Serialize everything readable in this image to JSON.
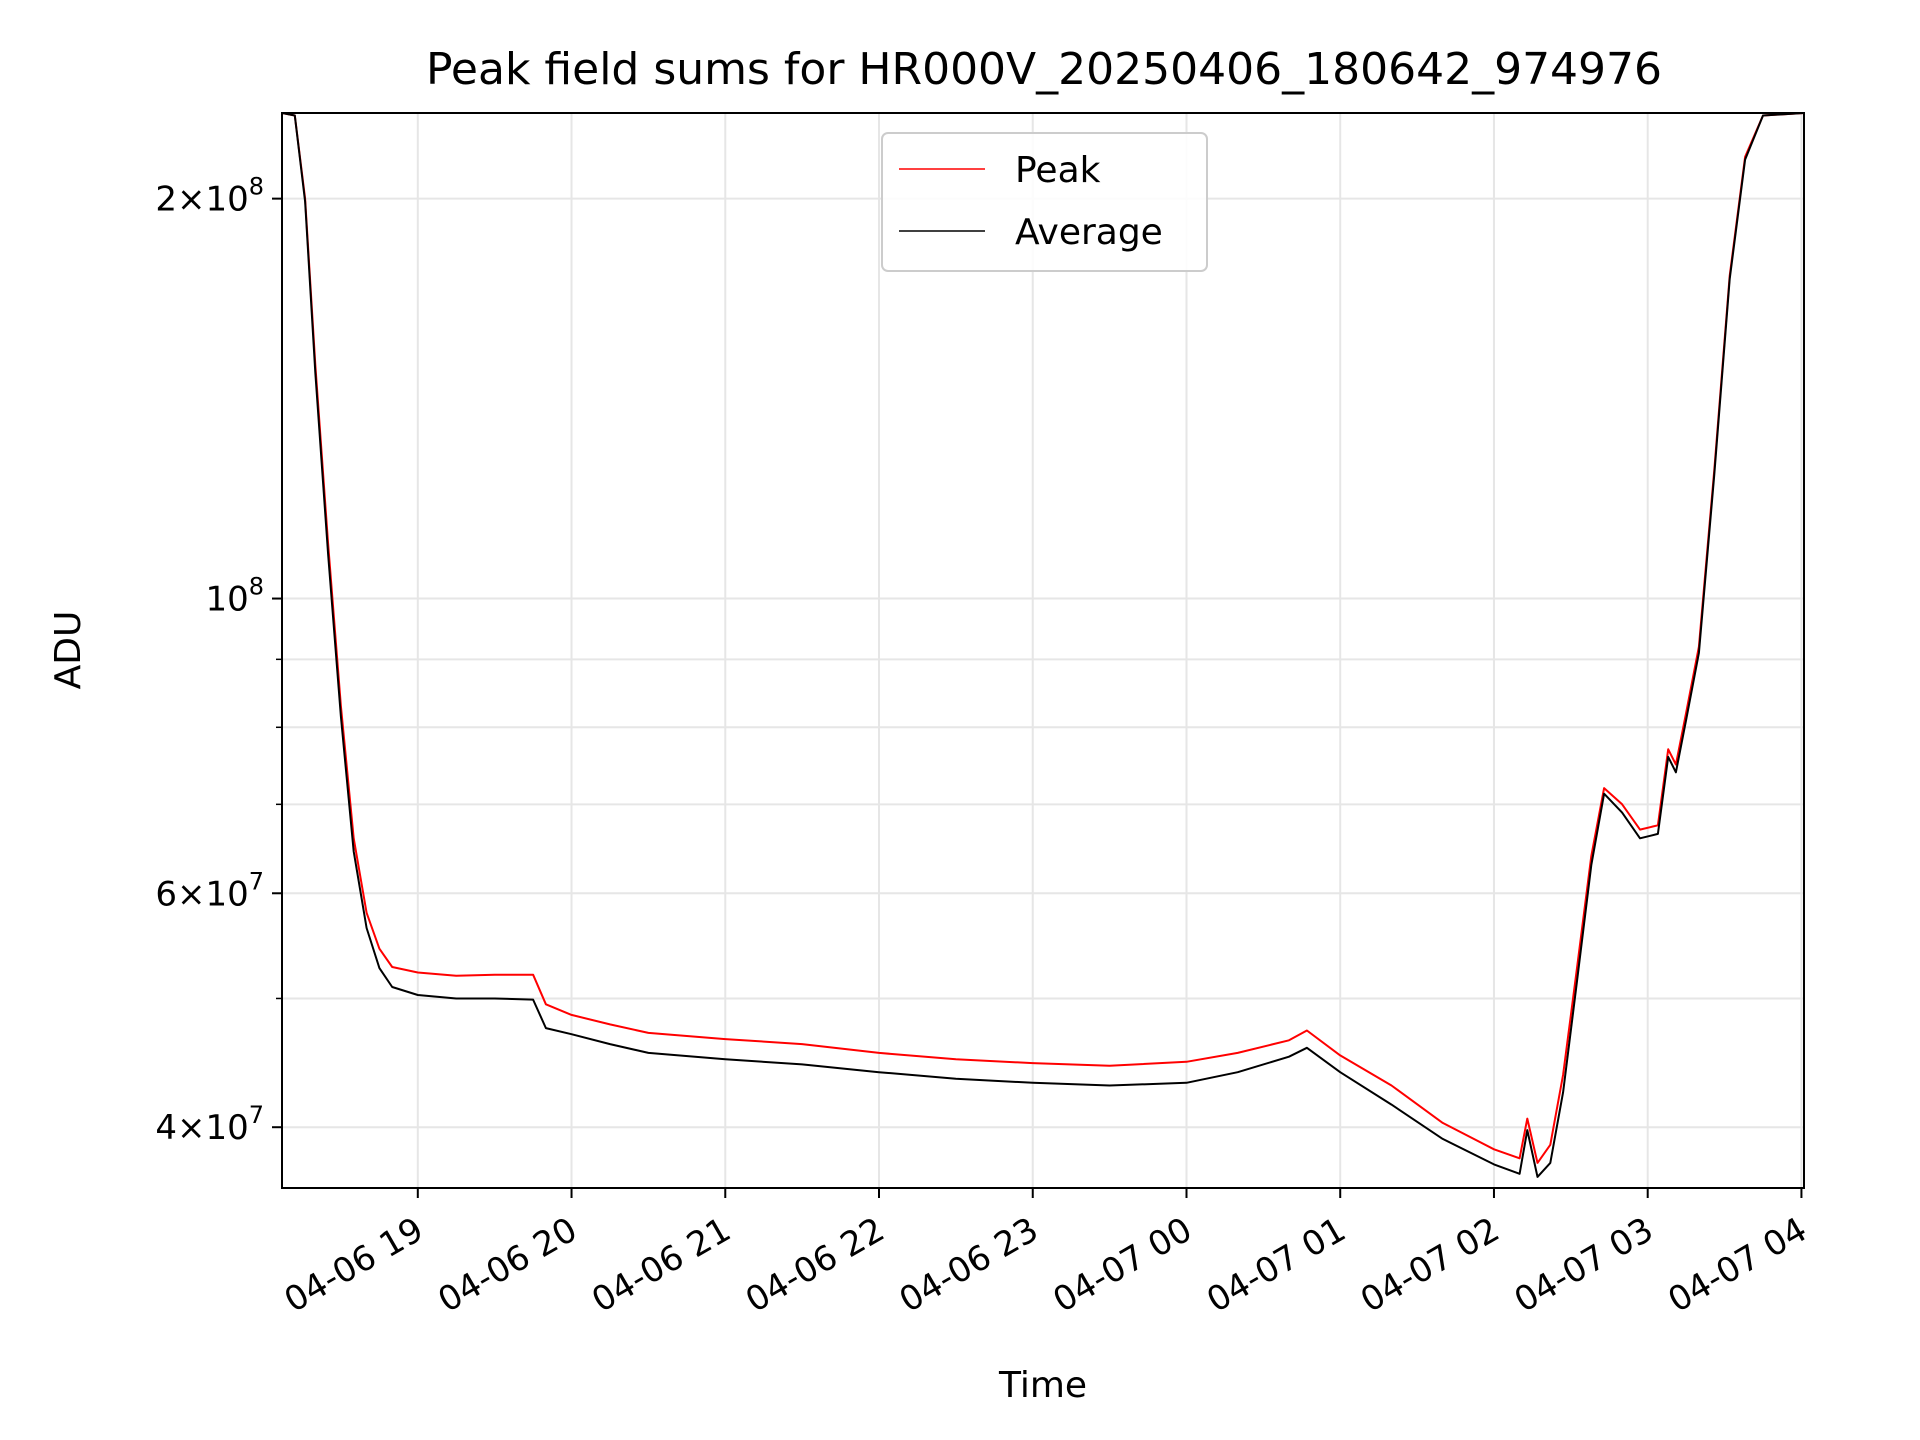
{
  "chart_data": {
    "type": "line",
    "title": "Peak field sums for HR000V_20250406_180642_974976",
    "xlabel": "Time",
    "ylabel": "ADU",
    "y_scale": "log",
    "ylim": [
      36000000,
      232000000
    ],
    "xlim": [
      "2025-04-06 18:07",
      "2025-04-07 04:01"
    ],
    "grid": true,
    "legend_position": "top-center",
    "x_ticks": [
      {
        "t": "2025-04-06 19:00",
        "label": "04-06 19"
      },
      {
        "t": "2025-04-06 20:00",
        "label": "04-06 20"
      },
      {
        "t": "2025-04-06 21:00",
        "label": "04-06 21"
      },
      {
        "t": "2025-04-06 22:00",
        "label": "04-06 22"
      },
      {
        "t": "2025-04-06 23:00",
        "label": "04-06 23"
      },
      {
        "t": "2025-04-07 00:00",
        "label": "04-07 00"
      },
      {
        "t": "2025-04-07 01:00",
        "label": "04-07 01"
      },
      {
        "t": "2025-04-07 02:00",
        "label": "04-07 02"
      },
      {
        "t": "2025-04-07 03:00",
        "label": "04-07 03"
      },
      {
        "t": "2025-04-07 04:00",
        "label": "04-07 04"
      }
    ],
    "y_ticks": [
      {
        "value": 40000000,
        "mant": "4",
        "exp": "7"
      },
      {
        "value": 60000000,
        "mant": "6",
        "exp": "7"
      },
      {
        "value": 100000000,
        "mant": "",
        "exp": "8"
      },
      {
        "value": 200000000,
        "mant": "2",
        "exp": "8"
      }
    ],
    "y_minor_ticks": [
      50000000,
      70000000,
      80000000,
      90000000
    ],
    "series": [
      {
        "name": "Peak",
        "color": "#ff0000",
        "points": [
          [
            "2025-04-06 18:07",
            232000000
          ],
          [
            "2025-04-06 18:12",
            231000000
          ],
          [
            "2025-04-06 18:16",
            200000000
          ],
          [
            "2025-04-06 18:20",
            150000000
          ],
          [
            "2025-04-06 18:25",
            110000000
          ],
          [
            "2025-04-06 18:30",
            83000000
          ],
          [
            "2025-04-06 18:35",
            66000000
          ],
          [
            "2025-04-06 18:40",
            58000000
          ],
          [
            "2025-04-06 18:45",
            54500000
          ],
          [
            "2025-04-06 18:50",
            52800000
          ],
          [
            "2025-04-06 19:00",
            52300000
          ],
          [
            "2025-04-06 19:15",
            52000000
          ],
          [
            "2025-04-06 19:30",
            52100000
          ],
          [
            "2025-04-06 19:45",
            52100000
          ],
          [
            "2025-04-06 19:50",
            49500000
          ],
          [
            "2025-04-06 20:00",
            48600000
          ],
          [
            "2025-04-06 20:15",
            47800000
          ],
          [
            "2025-04-06 20:30",
            47100000
          ],
          [
            "2025-04-06 21:00",
            46600000
          ],
          [
            "2025-04-06 21:30",
            46200000
          ],
          [
            "2025-04-06 22:00",
            45500000
          ],
          [
            "2025-04-06 22:30",
            45000000
          ],
          [
            "2025-04-06 23:00",
            44700000
          ],
          [
            "2025-04-06 23:30",
            44500000
          ],
          [
            "2025-04-07 00:00",
            44800000
          ],
          [
            "2025-04-07 00:20",
            45500000
          ],
          [
            "2025-04-07 00:40",
            46500000
          ],
          [
            "2025-04-07 00:47",
            47300000
          ],
          [
            "2025-04-07 01:00",
            45300000
          ],
          [
            "2025-04-07 01:20",
            43000000
          ],
          [
            "2025-04-07 01:40",
            40300000
          ],
          [
            "2025-04-07 02:00",
            38500000
          ],
          [
            "2025-04-07 02:10",
            37900000
          ],
          [
            "2025-04-07 02:13",
            40600000
          ],
          [
            "2025-04-07 02:17",
            37600000
          ],
          [
            "2025-04-07 02:22",
            38800000
          ],
          [
            "2025-04-07 02:27",
            43800000
          ],
          [
            "2025-04-07 02:32",
            52000000
          ],
          [
            "2025-04-07 02:38",
            64000000
          ],
          [
            "2025-04-07 02:43",
            72000000
          ],
          [
            "2025-04-07 02:50",
            70000000
          ],
          [
            "2025-04-07 02:57",
            67000000
          ],
          [
            "2025-04-07 03:04",
            67500000
          ],
          [
            "2025-04-07 03:08",
            77000000
          ],
          [
            "2025-04-07 03:11",
            75000000
          ],
          [
            "2025-04-07 03:15",
            82000000
          ],
          [
            "2025-04-07 03:20",
            92000000
          ],
          [
            "2025-04-07 03:26",
            125000000
          ],
          [
            "2025-04-07 03:32",
            175000000
          ],
          [
            "2025-04-07 03:38",
            215000000
          ],
          [
            "2025-04-07 03:45",
            231000000
          ],
          [
            "2025-04-07 04:01",
            232000000
          ]
        ]
      },
      {
        "name": "Average",
        "color": "#000000",
        "points": [
          [
            "2025-04-06 18:07",
            232000000
          ],
          [
            "2025-04-06 18:12",
            231000000
          ],
          [
            "2025-04-06 18:16",
            199000000
          ],
          [
            "2025-04-06 18:20",
            148000000
          ],
          [
            "2025-04-06 18:25",
            108000000
          ],
          [
            "2025-04-06 18:30",
            81500000
          ],
          [
            "2025-04-06 18:35",
            64500000
          ],
          [
            "2025-04-06 18:40",
            56500000
          ],
          [
            "2025-04-06 18:45",
            52700000
          ],
          [
            "2025-04-06 18:50",
            51000000
          ],
          [
            "2025-04-06 19:00",
            50300000
          ],
          [
            "2025-04-06 19:15",
            50000000
          ],
          [
            "2025-04-06 19:30",
            50000000
          ],
          [
            "2025-04-06 19:45",
            49900000
          ],
          [
            "2025-04-06 19:50",
            47500000
          ],
          [
            "2025-04-06 20:00",
            47000000
          ],
          [
            "2025-04-06 20:15",
            46200000
          ],
          [
            "2025-04-06 20:30",
            45500000
          ],
          [
            "2025-04-06 21:00",
            45000000
          ],
          [
            "2025-04-06 21:30",
            44600000
          ],
          [
            "2025-04-06 22:00",
            44000000
          ],
          [
            "2025-04-06 22:30",
            43500000
          ],
          [
            "2025-04-06 23:00",
            43200000
          ],
          [
            "2025-04-06 23:30",
            43000000
          ],
          [
            "2025-04-07 00:00",
            43200000
          ],
          [
            "2025-04-07 00:20",
            44000000
          ],
          [
            "2025-04-07 00:40",
            45200000
          ],
          [
            "2025-04-07 00:47",
            45900000
          ],
          [
            "2025-04-07 01:00",
            44000000
          ],
          [
            "2025-04-07 01:20",
            41600000
          ],
          [
            "2025-04-07 01:40",
            39200000
          ],
          [
            "2025-04-07 02:00",
            37500000
          ],
          [
            "2025-04-07 02:10",
            36900000
          ],
          [
            "2025-04-07 02:13",
            39800000
          ],
          [
            "2025-04-07 02:17",
            36700000
          ],
          [
            "2025-04-07 02:22",
            37600000
          ],
          [
            "2025-04-07 02:27",
            42500000
          ],
          [
            "2025-04-07 02:32",
            50800000
          ],
          [
            "2025-04-07 02:38",
            63000000
          ],
          [
            "2025-04-07 02:43",
            71300000
          ],
          [
            "2025-04-07 02:50",
            69000000
          ],
          [
            "2025-04-07 02:57",
            66000000
          ],
          [
            "2025-04-07 03:04",
            66500000
          ],
          [
            "2025-04-07 03:08",
            76000000
          ],
          [
            "2025-04-07 03:11",
            74000000
          ],
          [
            "2025-04-07 03:15",
            81000000
          ],
          [
            "2025-04-07 03:20",
            91000000
          ],
          [
            "2025-04-07 03:26",
            124000000
          ],
          [
            "2025-04-07 03:32",
            174000000
          ],
          [
            "2025-04-07 03:38",
            214000000
          ],
          [
            "2025-04-07 03:45",
            231000000
          ],
          [
            "2025-04-07 04:01",
            232000000
          ]
        ]
      }
    ]
  }
}
